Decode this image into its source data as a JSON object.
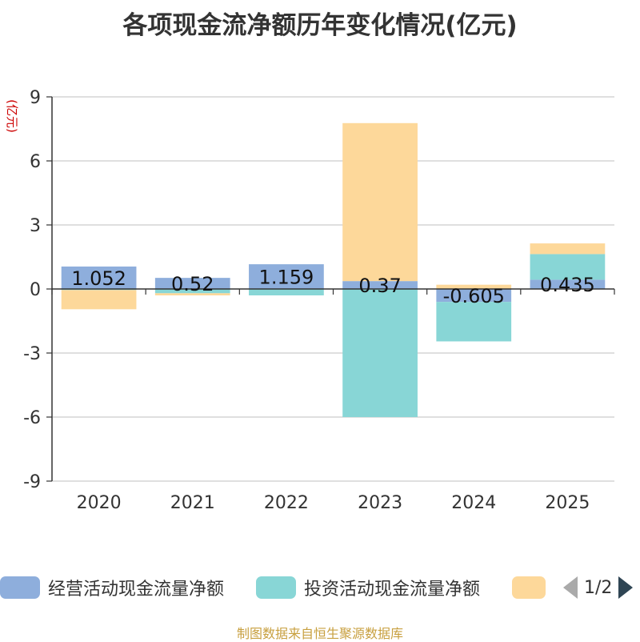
{
  "chart_data": {
    "type": "bar",
    "stacked": true,
    "title": "各项现金流净额历年变化情况(亿元)",
    "ylabel": "(亿元)",
    "xlabel": "",
    "ylim": [
      -9,
      9
    ],
    "yticks": [
      9,
      6,
      3,
      0,
      -3,
      -6,
      -9
    ],
    "categories": [
      "2020",
      "2021",
      "2022",
      "2023",
      "2024",
      "2025"
    ],
    "series": [
      {
        "name": "经营活动现金流量净额",
        "color": "#8eaedc",
        "values": [
          1.052,
          0.52,
          1.159,
          0.37,
          -0.605,
          0.435
        ],
        "labels": [
          "1.052",
          "0.52",
          "1.159",
          "0.37",
          "-0.605",
          "0.435"
        ]
      },
      {
        "name": "投资活动现金流量净额",
        "color": "#88d6d6",
        "values": [
          -0.05,
          -0.2,
          -0.3,
          -6.0,
          -1.85,
          1.2
        ]
      },
      {
        "name": "",
        "color": "#fdd89a",
        "values": [
          -0.9,
          -0.1,
          0,
          7.4,
          0.2,
          0.5
        ]
      }
    ],
    "grid": true,
    "legend_position": "bottom"
  },
  "legend": {
    "items": [
      "经营活动现金流量净额",
      "投资活动现金流量净额",
      ""
    ],
    "page": "1/2"
  },
  "source": "制图数据来自恒生聚源数据库"
}
